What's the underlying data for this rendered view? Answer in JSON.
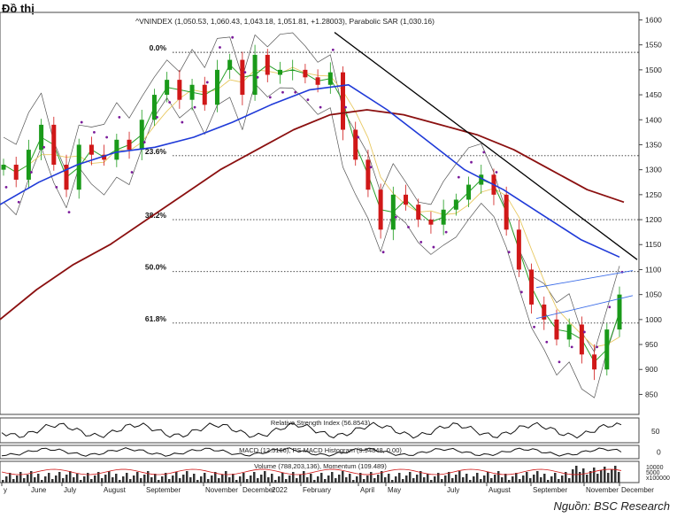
{
  "page": {
    "heading": "Đồ thị",
    "source": "Nguồn: BSC Research"
  },
  "colors": {
    "price_up": "#1a9a1a",
    "price_down": "#d01818",
    "sar": "#7a1a9a",
    "ma_long": "#8b1010",
    "ma_mid": "#1f3ad8",
    "ma_short": "#e8c860",
    "ma_fast": "#2aa02a",
    "bollinger": "#555555",
    "trendline": "#000000",
    "channel": "#3b6ce8"
  },
  "chart_data": [
    {
      "type": "line",
      "title": "^VNINDEX (1,050.53, 1,060.43, 1,043.18, 1,051.81, +1.28003), Parabolic SAR (1,030.16)",
      "x_ticks": [
        "y",
        "June",
        "July",
        "August",
        "September",
        "November",
        "December",
        "2022",
        "February",
        "April",
        "May",
        "July",
        "August",
        "September",
        "November",
        "December"
      ],
      "y_ticks": [
        850,
        900,
        950,
        1000,
        1050,
        1100,
        1150,
        1200,
        1250,
        1300,
        1350,
        1400,
        1450,
        1500,
        1550,
        1600
      ],
      "ylim": [
        810,
        1615
      ],
      "fib_levels": [
        {
          "label": "0.0%",
          "value": 1535
        },
        {
          "label": "23.6%",
          "value": 1328
        },
        {
          "label": "38.2%",
          "value": 1200
        },
        {
          "label": "50.0%",
          "value": 1096
        },
        {
          "label": "61.8%",
          "value": 993
        }
      ],
      "ohlc_close_approx": [
        1310,
        1280,
        1340,
        1390,
        1310,
        1260,
        1350,
        1330,
        1320,
        1360,
        1340,
        1400,
        1450,
        1480,
        1440,
        1470,
        1430,
        1500,
        1520,
        1450,
        1530,
        1490,
        1500,
        1500,
        1485,
        1470,
        1495,
        1380,
        1320,
        1260,
        1180,
        1250,
        1230,
        1200,
        1190,
        1220,
        1240,
        1270,
        1290,
        1250,
        1180,
        1100,
        1030,
        1000,
        960,
        990,
        930,
        900,
        980,
        1050
      ],
      "ma_long_approx": [
        1000,
        1060,
        1110,
        1150,
        1200,
        1250,
        1300,
        1340,
        1380,
        1410,
        1420,
        1410,
        1390,
        1370,
        1340,
        1300,
        1260,
        1235
      ],
      "ma_mid_approx": [
        1230,
        1275,
        1310,
        1335,
        1345,
        1365,
        1395,
        1430,
        1460,
        1470,
        1420,
        1360,
        1300,
        1260,
        1210,
        1160,
        1125
      ],
      "trendline": {
        "start": 1575,
        "end": 1120
      }
    },
    {
      "type": "line",
      "title": "Relative Strength Index (56.8543)",
      "y_ticks": [
        50
      ]
    },
    {
      "type": "line",
      "title": "MACD (12.5166), PS MACD Histogram (9.94848, 0.00)",
      "y_ticks": [
        0
      ]
    },
    {
      "type": "bar",
      "title": "Volume (788,203,136), Momentum (109.489)",
      "y_ticks": [
        "10000",
        "5000",
        "x100000"
      ]
    }
  ]
}
